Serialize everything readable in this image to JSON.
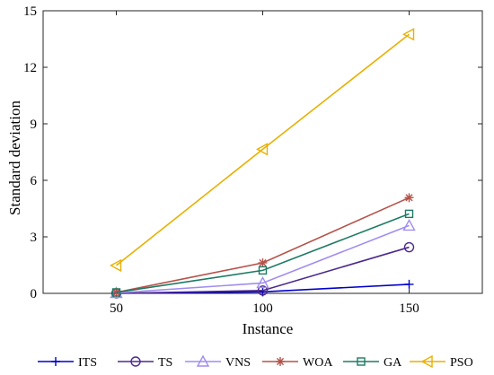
{
  "chart_data": {
    "type": "line",
    "xlabel": "Instance",
    "ylabel": "Standard deviation",
    "x": [
      50,
      100,
      150
    ],
    "xlim": [
      25,
      175
    ],
    "ylim": [
      0,
      15
    ],
    "xticks": [
      "50",
      "100",
      "150"
    ],
    "yticks": [
      "0",
      "3",
      "6",
      "9",
      "12",
      "15"
    ],
    "grid": false,
    "legend_position": "bottom",
    "series": [
      {
        "name": "ITS",
        "values": [
          0.0,
          0.08,
          0.48
        ],
        "color": "#0000cc",
        "marker": "plus"
      },
      {
        "name": "TS",
        "values": [
          0.0,
          0.15,
          2.45
        ],
        "color": "#4b2a8c",
        "marker": "circle"
      },
      {
        "name": "VNS",
        "values": [
          0.02,
          0.55,
          3.6
        ],
        "color": "#a08cf0",
        "marker": "triangle-up"
      },
      {
        "name": "WOA",
        "values": [
          0.05,
          1.62,
          5.08
        ],
        "color": "#b5524a",
        "marker": "asterisk"
      },
      {
        "name": "GA",
        "values": [
          0.05,
          1.22,
          4.22
        ],
        "color": "#1e7a64",
        "marker": "square"
      },
      {
        "name": "PSO",
        "values": [
          1.48,
          7.65,
          13.75
        ],
        "color": "#e8b000",
        "marker": "triangle-left"
      }
    ]
  }
}
